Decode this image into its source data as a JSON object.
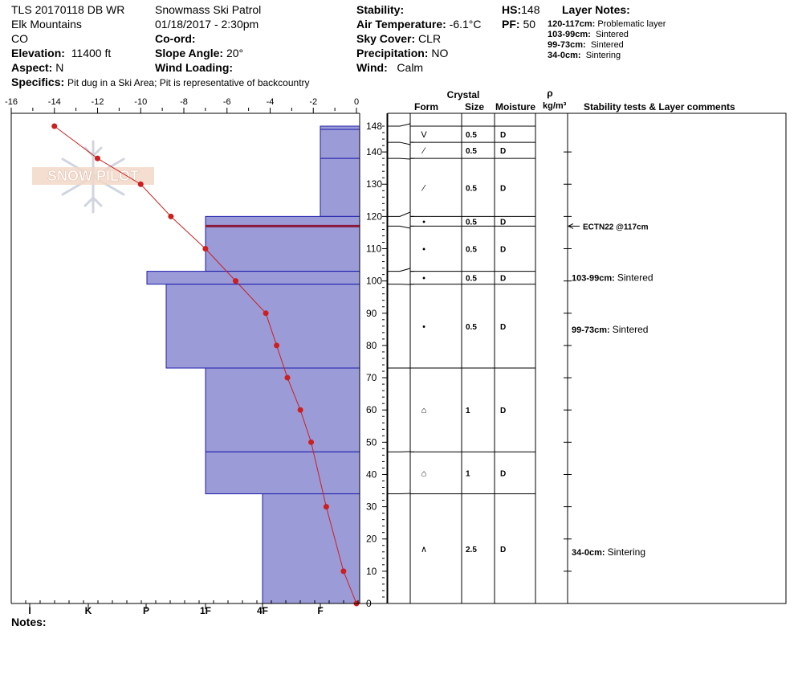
{
  "header": {
    "pit_id": "TLS 20170118 DB WR",
    "range": "Elk Mountains",
    "state": "CO",
    "elevation_label": "Elevation:",
    "elevation": "11400 ft",
    "aspect_label": "Aspect:",
    "aspect": "N",
    "specifics_label": "Specifics:",
    "specifics": "Pit dug in a Ski Area; Pit is representative of backcountry",
    "observer": "Snowmass Ski Patrol",
    "datetime": "01/18/2017 - 2:30pm",
    "coord_label": "Co-ord:",
    "slope_label": "Slope Angle:",
    "slope": "20°",
    "wind_loading_label": "Wind Loading:",
    "stability_label": "Stability:",
    "air_temp_label": "Air Temperature:",
    "air_temp": "-6.1°C",
    "sky_label": "Sky Cover:",
    "sky": "CLR",
    "precip_label": "Precipitation:",
    "precip": "NO",
    "wind_label": "Wind:",
    "wind": "Calm",
    "hs_label": "HS:",
    "hs": "148",
    "pf_label": "PF:",
    "pf": "50",
    "layer_notes_label": "Layer Notes:",
    "layer_notes": [
      {
        "range": "120-117cm:",
        "text": "Problematic layer"
      },
      {
        "range": "103-99cm:",
        "text": "Sintered"
      },
      {
        "range": "99-73cm:",
        "text": "Sintered"
      },
      {
        "range": "34-0cm:",
        "text": "Sintering"
      }
    ]
  },
  "table_headers": {
    "crystal": "Crystal",
    "form": "Form",
    "size": "Size",
    "moisture": "Moisture",
    "rho": "ρ",
    "density_unit": "kg/m³",
    "comments": "Stability tests & Layer comments"
  },
  "notes_label": "Notes:",
  "logo_text": "SNOW PILOT",
  "colors": {
    "hardness_fill": "#9b9bd8",
    "hardness_stroke": "#1c1caa",
    "temp_line": "#cc1f1f",
    "problem_layer": "#8b1a3a"
  },
  "chart_data": {
    "type": "snow-profile",
    "temperature_axis": {
      "label_ticks": [
        -16,
        -14,
        -12,
        -10,
        -8,
        -6,
        -4,
        -2,
        0
      ],
      "range": [
        -16,
        0
      ],
      "unit": "°C"
    },
    "depth_axis": {
      "ticks": [
        0,
        10,
        20,
        30,
        40,
        50,
        60,
        70,
        80,
        90,
        100,
        110,
        120,
        130,
        140,
        148
      ],
      "range": [
        0,
        148
      ],
      "unit": "cm"
    },
    "hardness_axis": [
      "I",
      "K",
      "P",
      "1F",
      "4F",
      "F"
    ],
    "temperature_profile": [
      {
        "depth": 148,
        "temp": -14.0
      },
      {
        "depth": 138,
        "temp": -12.0
      },
      {
        "depth": 130,
        "temp": -10.0
      },
      {
        "depth": 120,
        "temp": -8.6
      },
      {
        "depth": 110,
        "temp": -7.0
      },
      {
        "depth": 100,
        "temp": -5.6
      },
      {
        "depth": 90,
        "temp": -4.2
      },
      {
        "depth": 80,
        "temp": -3.7
      },
      {
        "depth": 70,
        "temp": -3.2
      },
      {
        "depth": 60,
        "temp": -2.6
      },
      {
        "depth": 50,
        "temp": -2.1
      },
      {
        "depth": 30,
        "temp": -1.4
      },
      {
        "depth": 10,
        "temp": -0.6
      },
      {
        "depth": 0,
        "temp": 0
      }
    ],
    "hardness_layers": [
      {
        "top": 148,
        "bottom": 147,
        "hardness": "F"
      },
      {
        "top": 147,
        "bottom": 138,
        "hardness": "F"
      },
      {
        "top": 138,
        "bottom": 120,
        "hardness": "F"
      },
      {
        "top": 120,
        "bottom": 117,
        "hardness": "1F"
      },
      {
        "top": 117,
        "bottom": 103,
        "hardness": "1F"
      },
      {
        "top": 103,
        "bottom": 99,
        "hardness": "P-"
      },
      {
        "top": 99,
        "bottom": 73,
        "hardness": "P+"
      },
      {
        "top": 73,
        "bottom": 47,
        "hardness": "1F"
      },
      {
        "top": 47,
        "bottom": 34,
        "hardness": "1F"
      },
      {
        "top": 34,
        "bottom": 0,
        "hardness": "4F"
      }
    ],
    "problem_layer_depth": 117,
    "crystal_layers": [
      {
        "top": 148,
        "bottom": 143,
        "form": "V",
        "size": "0.5",
        "moisture": "D"
      },
      {
        "top": 143,
        "bottom": 138,
        "form": "⁄",
        "size": "0.5",
        "moisture": "D"
      },
      {
        "top": 138,
        "bottom": 120,
        "form": "⁄",
        "size": "0.5",
        "moisture": "D"
      },
      {
        "top": 120,
        "bottom": 117,
        "form": "•",
        "size": "0.5",
        "moisture": "D"
      },
      {
        "top": 117,
        "bottom": 103,
        "form": "•",
        "size": "0.5",
        "moisture": "D"
      },
      {
        "top": 103,
        "bottom": 99,
        "form": "•",
        "size": "0.5",
        "moisture": "D"
      },
      {
        "top": 99,
        "bottom": 73,
        "form": "•",
        "size": "0.5",
        "moisture": "D"
      },
      {
        "top": 73,
        "bottom": 47,
        "form": "⌂",
        "size": "1",
        "moisture": "D"
      },
      {
        "top": 47,
        "bottom": 34,
        "form": "⌂",
        "size": "1",
        "moisture": "D"
      },
      {
        "top": 34,
        "bottom": 0,
        "form": "∧",
        "size": "2.5",
        "moisture": "D"
      }
    ],
    "comments": [
      {
        "depth": 117,
        "text": "ECTN22 @117cm",
        "arrow": true
      },
      {
        "depth": 101,
        "range": "103-99cm:",
        "text": "Sintered"
      },
      {
        "depth": 85,
        "range": "99-73cm:",
        "text": "Sintered"
      },
      {
        "depth": 16,
        "range": "34-0cm:",
        "text": "Sintering"
      }
    ]
  }
}
